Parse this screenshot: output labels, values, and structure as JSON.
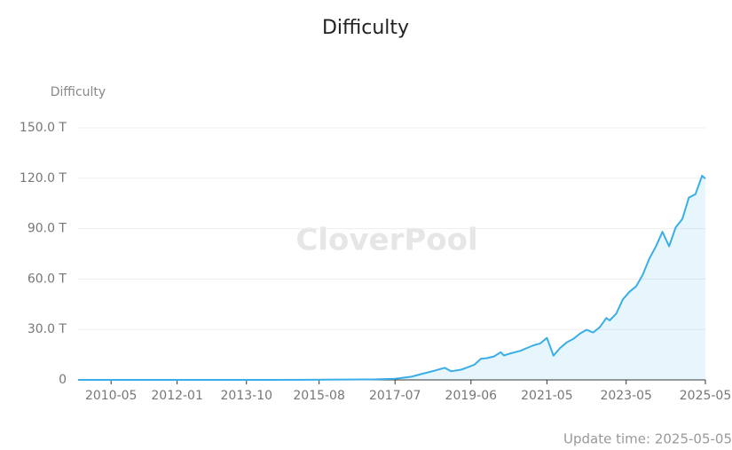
{
  "chart_data": {
    "type": "line",
    "title": "Difficulty",
    "y_label": "Difficulty",
    "watermark": "CloverPool",
    "footer": "Update time: 2025-05-05",
    "color": "#3aaee8",
    "area": true,
    "grid": true,
    "x": [
      "2009-07",
      "2010-05",
      "2011-05",
      "2012-05",
      "2013-05",
      "2014-05",
      "2015-05",
      "2016-05",
      "2017-01",
      "2017-07",
      "2017-12",
      "2018-03",
      "2018-07",
      "2018-10",
      "2018-12",
      "2019-03",
      "2019-05",
      "2019-07",
      "2019-09",
      "2019-11",
      "2020-01",
      "2020-03",
      "2020-04",
      "2020-06",
      "2020-09",
      "2020-11",
      "2021-01",
      "2021-03",
      "2021-05",
      "2021-07",
      "2021-09",
      "2021-11",
      "2022-01",
      "2022-03",
      "2022-05",
      "2022-07",
      "2022-09",
      "2022-11",
      "2022-12",
      "2023-02",
      "2023-04",
      "2023-06",
      "2023-08",
      "2023-10",
      "2023-12",
      "2024-02",
      "2024-04",
      "2024-06",
      "2024-08",
      "2024-10",
      "2024-12",
      "2025-02",
      "2025-04",
      "2025-05"
    ],
    "values": [
      0,
      0,
      0,
      0,
      0.01,
      0.009,
      0.047,
      0.194,
      0.336,
      0.7,
      1.9,
      3.5,
      5.5,
      7.2,
      5.1,
      6.1,
      7.5,
      9.0,
      12.5,
      13.0,
      14,
      16.5,
      14.5,
      15.8,
      17.3,
      19.0,
      20.6,
      21.7,
      25.0,
      14.4,
      19,
      22.3,
      24.4,
      27.5,
      29.8,
      28.2,
      31.3,
      36.8,
      35.4,
      39.4,
      47.9,
      52.4,
      55.6,
      62.5,
      72,
      79.4,
      88.1,
      79.5,
      90.7,
      95.7,
      108.5,
      110.5,
      121.5,
      119.8
    ],
    "xlim": [
      "2009-07",
      "2025-05"
    ],
    "xticks": [
      "2010-05",
      "2012-01",
      "2013-10",
      "2015-08",
      "2017-07",
      "2019-06",
      "2021-05",
      "2023-05",
      "2025-05"
    ],
    "ylim": [
      0,
      150
    ],
    "yticks": [
      0,
      {
        "value": 30,
        "label": "30.0 T"
      },
      {
        "value": 60,
        "label": "60.0 T"
      },
      {
        "value": 90,
        "label": "90.0 T"
      },
      {
        "value": 120,
        "label": "120.0 T"
      },
      {
        "value": 150,
        "label": "150.0 T"
      }
    ]
  }
}
